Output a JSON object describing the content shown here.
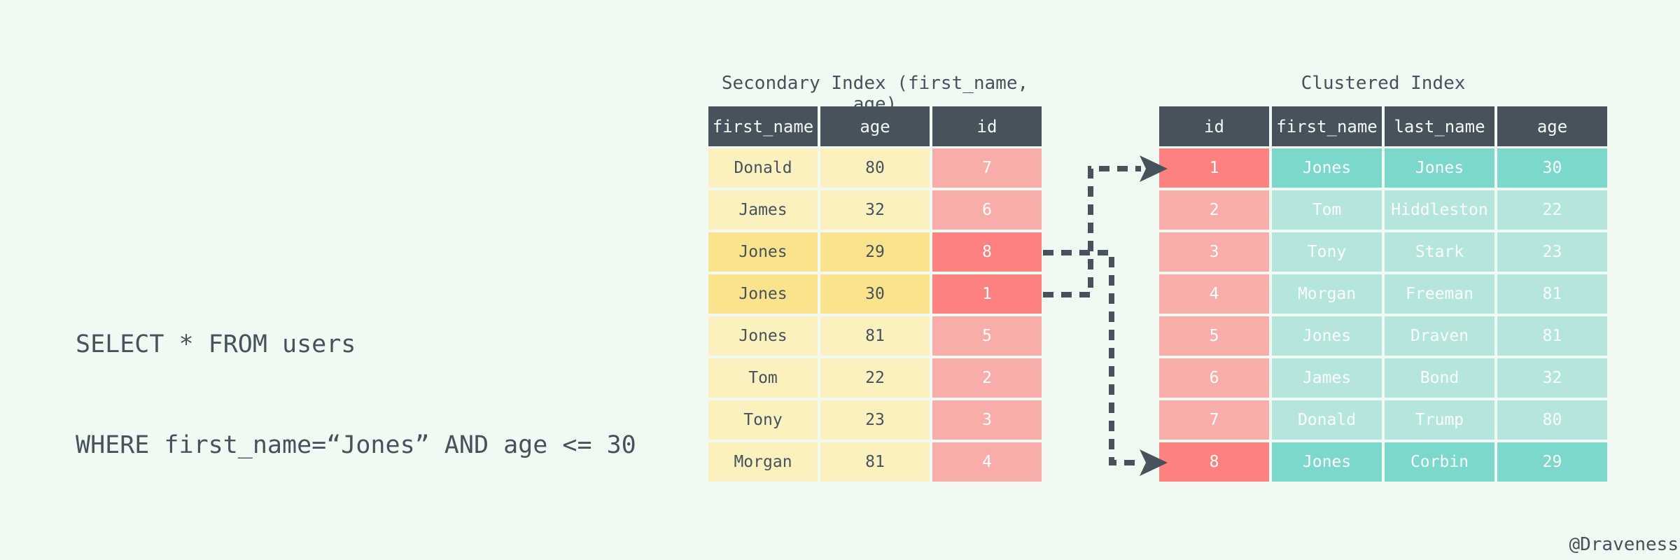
{
  "query": {
    "line1": "SELECT * FROM users",
    "line2": "WHERE first_name=“Jones” AND age <= 30"
  },
  "secondary_index": {
    "title": "Secondary Index (first_name, age)",
    "columns": [
      "first_name",
      "age",
      "id"
    ],
    "rows": [
      [
        "Donald",
        "80",
        "7"
      ],
      [
        "James",
        "32",
        "6"
      ],
      [
        "Jones",
        "29",
        "8"
      ],
      [
        "Jones",
        "30",
        "1"
      ],
      [
        "Jones",
        "81",
        "5"
      ],
      [
        "Tom",
        "22",
        "2"
      ],
      [
        "Tony",
        "23",
        "3"
      ],
      [
        "Morgan",
        "81",
        "4"
      ]
    ],
    "highlighted_rows": [
      2,
      3
    ]
  },
  "clustered_index": {
    "title": "Clustered Index",
    "columns": [
      "id",
      "first_name",
      "last_name",
      "age"
    ],
    "rows": [
      [
        "1",
        "Jones",
        "Jones",
        "30"
      ],
      [
        "2",
        "Tom",
        "Hiddleston",
        "22"
      ],
      [
        "3",
        "Tony",
        "Stark",
        "23"
      ],
      [
        "4",
        "Morgan",
        "Freeman",
        "81"
      ],
      [
        "5",
        "Jones",
        "Draven",
        "81"
      ],
      [
        "6",
        "James",
        "Bond",
        "32"
      ],
      [
        "7",
        "Donald",
        "Trump",
        "80"
      ],
      [
        "8",
        "Jones",
        "Corbin",
        "29"
      ]
    ],
    "highlighted_rows": [
      0,
      7
    ]
  },
  "arrows": [
    {
      "from": "secondary id 8",
      "to": "clustered row id 8"
    },
    {
      "from": "secondary id 1",
      "to": "clustered row id 1"
    }
  ],
  "credit": "@Draveness",
  "colors": {
    "bg": "#F0FAF2",
    "ink": "#46535C",
    "header_bg": "#46535C",
    "header_text": "#F2F8F4",
    "cell_text_light": "#FBFDFC",
    "yellow": "#FAF1BF",
    "yellow_hl": "#FBE28D",
    "pink": "#F9ADAB",
    "red": "#FD827F",
    "teal": "#B5E6DD",
    "teal_hl": "#7CD8CB",
    "arrow": "#46535C"
  }
}
